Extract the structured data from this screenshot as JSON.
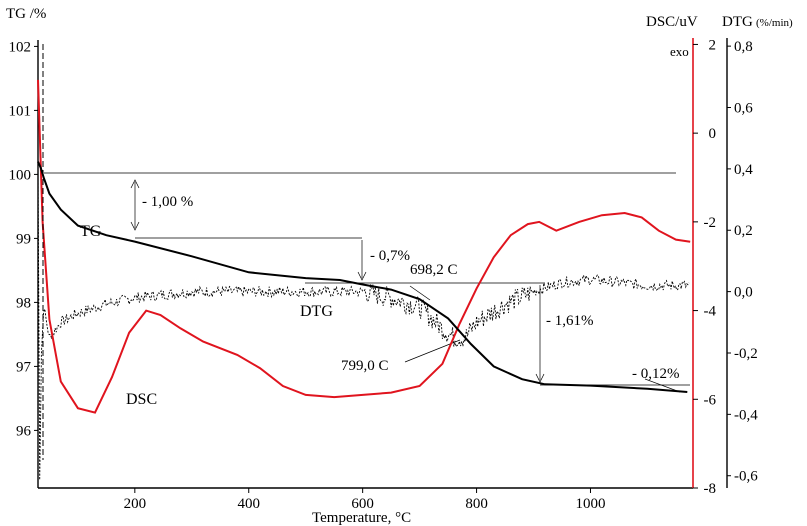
{
  "chart_data": {
    "type": "line",
    "xlabel": "Temperature, °C",
    "x_ticks": [
      200,
      400,
      600,
      800,
      1000
    ],
    "xlim": [
      30,
      1180
    ],
    "axes": {
      "tg": {
        "label": "TG /%",
        "ticks": [
          96,
          97,
          98,
          99,
          100,
          101,
          102
        ],
        "ylim": [
          95.1,
          102.1
        ]
      },
      "dsc": {
        "label": "DSC/uV",
        "exo_label": "exo",
        "ticks": [
          "-8",
          "-6",
          "-4",
          "-2",
          "0",
          "2"
        ],
        "tick_values": [
          -8,
          -6,
          -4,
          -2,
          0,
          2
        ],
        "ylim": [
          -8,
          2.1
        ]
      },
      "dtg": {
        "label": "DTG",
        "unit": "(%/min)",
        "ticks": [
          "-0,6",
          "-0,4",
          "-0,2",
          "0,0",
          "0,2",
          "0,4",
          "0,6",
          "0,8"
        ],
        "tick_values": [
          -0.6,
          -0.4,
          -0.2,
          0,
          0.2,
          0.4,
          0.6,
          0.8
        ],
        "ylim": [
          -0.64,
          0.82
        ]
      }
    },
    "series": [
      {
        "name": "TG",
        "axis": "tg",
        "color": "#000000",
        "x": [
          30,
          35,
          40,
          50,
          70,
          100,
          150,
          200,
          300,
          400,
          500,
          560,
          600,
          650,
          700,
          750,
          790,
          830,
          880,
          920,
          1000,
          1100,
          1170
        ],
        "y": [
          100.2,
          100.1,
          99.95,
          99.7,
          99.45,
          99.2,
          99.05,
          98.95,
          98.72,
          98.47,
          98.38,
          98.35,
          98.28,
          98.2,
          98.05,
          97.75,
          97.35,
          97.0,
          96.8,
          96.72,
          96.7,
          96.65,
          96.6
        ]
      },
      {
        "name": "DSC",
        "axis": "dsc",
        "color": "#e0141e",
        "x": [
          30,
          38,
          50,
          70,
          100,
          130,
          160,
          190,
          220,
          245,
          280,
          320,
          380,
          420,
          460,
          500,
          550,
          600,
          650,
          700,
          740,
          770,
          800,
          830,
          860,
          890,
          910,
          940,
          980,
          1020,
          1060,
          1090,
          1120,
          1150,
          1175
        ],
        "y": [
          1.2,
          -2,
          -4.2,
          -5.6,
          -6.2,
          -6.3,
          -5.5,
          -4.5,
          -4.0,
          -4.1,
          -4.4,
          -4.7,
          -5.0,
          -5.3,
          -5.7,
          -5.9,
          -5.95,
          -5.9,
          -5.85,
          -5.7,
          -5.2,
          -4.3,
          -3.5,
          -2.8,
          -2.3,
          -2.05,
          -2.0,
          -2.2,
          -2.0,
          -1.85,
          -1.8,
          -1.9,
          -2.2,
          -2.4,
          -2.45
        ]
      },
      {
        "name": "DTG",
        "axis": "dtg",
        "color": "#000000",
        "x": [
          30,
          33,
          36,
          40,
          50,
          70,
          100,
          150,
          200,
          300,
          400,
          500,
          600,
          650,
          700,
          740,
          760,
          780,
          800,
          850,
          900,
          950,
          1000,
          1050,
          1100,
          1175
        ],
        "y": [
          0.4,
          -0.6,
          -0.2,
          -0.05,
          -0.15,
          -0.1,
          -0.07,
          -0.04,
          -0.02,
          0.0,
          0.0,
          0.0,
          0.0,
          -0.02,
          -0.05,
          -0.12,
          -0.15,
          -0.15,
          -0.1,
          -0.04,
          0.0,
          0.03,
          0.04,
          0.03,
          0.02,
          0.02
        ]
      }
    ],
    "annotations": [
      "- 1,00 %",
      "- 0,7%",
      "698,2 C",
      "- 1,61%",
      "799,0 C",
      "- 0,12%"
    ]
  }
}
